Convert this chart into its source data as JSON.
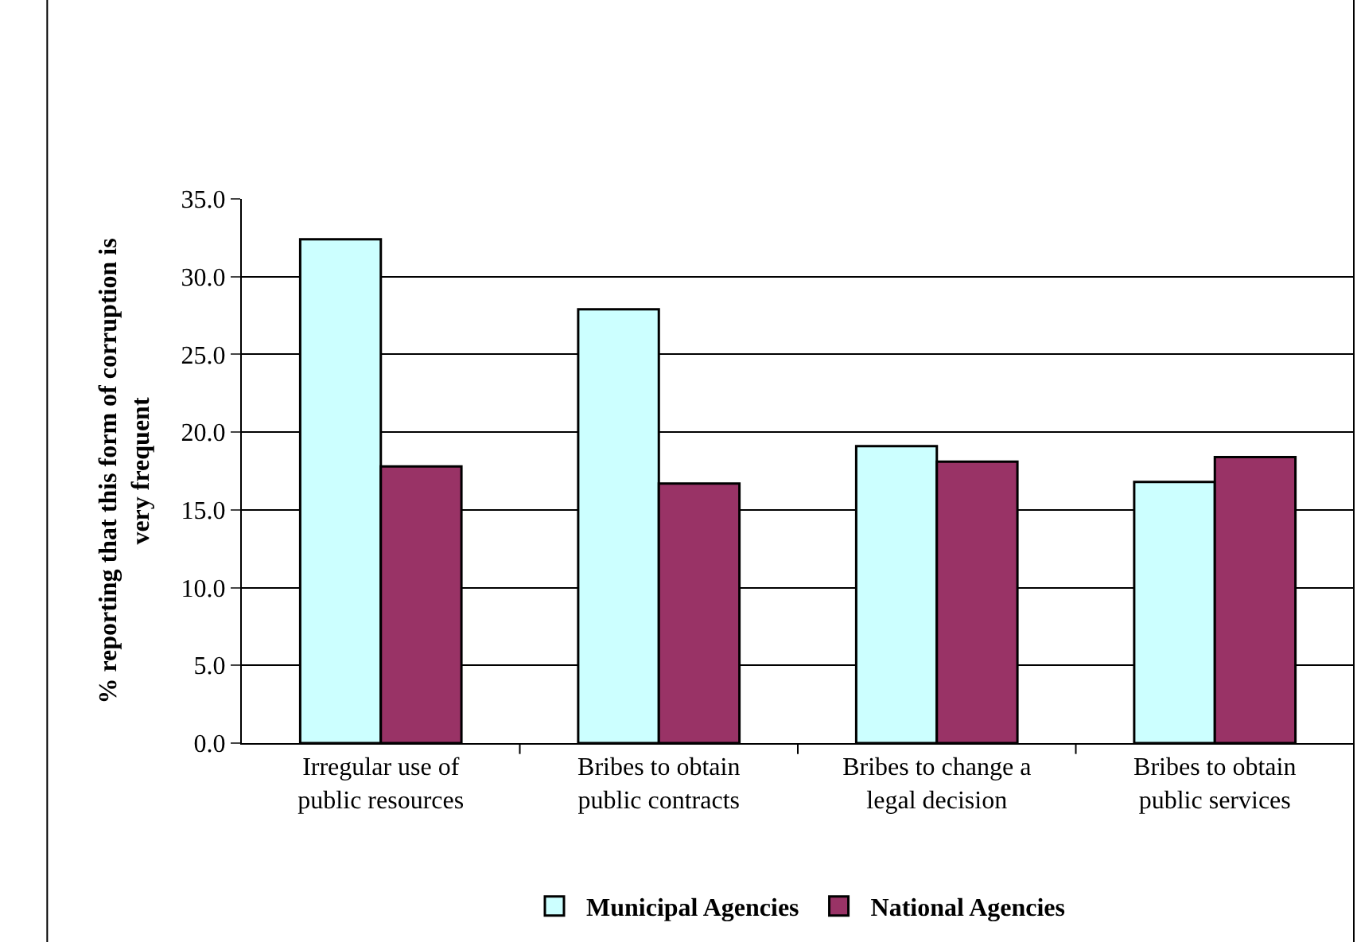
{
  "chart_data": {
    "type": "bar",
    "ylabel": "% reporting that this form of corruption is\nvery frequent",
    "categories": [
      "Irregular use of\npublic resources",
      "Bribes to obtain\npublic contracts",
      "Bribes to change a\nlegal decision",
      "Bribes to obtain\npublic services"
    ],
    "series": [
      {
        "name": "Municipal Agencies",
        "color": "#ccffff",
        "values": [
          32.4,
          27.9,
          19.1,
          16.8
        ]
      },
      {
        "name": "National Agencies",
        "color": "#993366",
        "values": [
          17.8,
          16.7,
          18.1,
          18.4
        ]
      }
    ],
    "ylim": [
      0,
      35
    ],
    "yticks": [
      {
        "value": 0,
        "label": "0.0"
      },
      {
        "value": 5,
        "label": "5.0"
      },
      {
        "value": 10,
        "label": "10.0"
      },
      {
        "value": 15,
        "label": "15.0"
      },
      {
        "value": 20,
        "label": "20.0"
      },
      {
        "value": 25,
        "label": "25.0"
      },
      {
        "value": 30,
        "label": "30.0"
      },
      {
        "value": 35,
        "label": "35.0"
      }
    ],
    "grid": "y",
    "legend": "bottom"
  }
}
